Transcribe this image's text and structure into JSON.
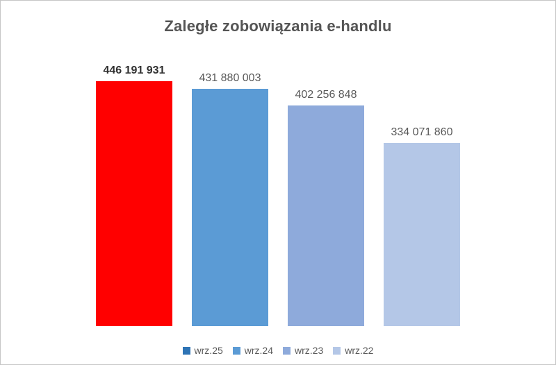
{
  "chart_data": {
    "type": "bar",
    "title": "Zaległe zobowiązania e-handlu",
    "categories": [
      "wrz.25",
      "wrz.24",
      "wrz.23",
      "wrz.22"
    ],
    "values": [
      446191931,
      431880003,
      402256848,
      334071860
    ],
    "value_labels": [
      "446 191 931",
      "431 880 003",
      "402 256 848",
      "334 071 860"
    ],
    "label_bold": [
      true,
      false,
      false,
      false
    ],
    "bar_colors": [
      "#FF0000",
      "#5B9BD5",
      "#8EAADB",
      "#B4C7E7"
    ],
    "legend_colors": [
      "#2E74B5",
      "#5B9BD5",
      "#8EAADB",
      "#B4C7E7"
    ],
    "ylim": [
      0,
      446191931
    ],
    "xlabel": "",
    "ylabel": "",
    "grid": false,
    "axes_visible": false,
    "legend_position": "bottom"
  },
  "style": {
    "title_color": "#555555",
    "label_color": "#595959",
    "bold_label_color": "#303030",
    "border_color": "#c6c6c6",
    "background": "#ffffff"
  }
}
